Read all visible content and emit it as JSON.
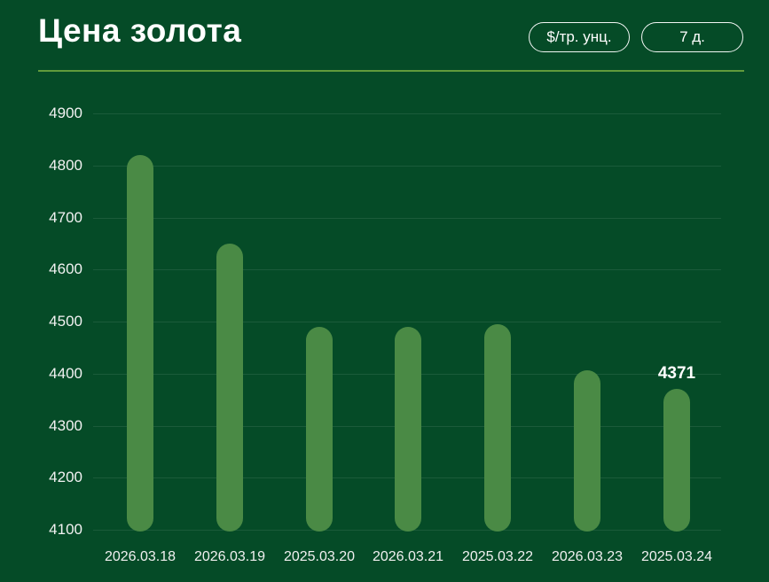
{
  "header": {
    "title": "Цена золота",
    "unit_button": "$/тр. унц.",
    "period_button": "7 д."
  },
  "colors": {
    "background": "#054B27",
    "bar": "#4A8A45",
    "divider": "#619B3C",
    "gridline": "rgba(255,255,255,0.09)",
    "text": "#FFFFFF"
  },
  "chart_data": {
    "type": "bar",
    "title": "Цена золота",
    "unit": "$/тр. унц.",
    "period": "7 д.",
    "categories": [
      "2026.03.18",
      "2026.03.19",
      "2025.03.20",
      "2026.03.21",
      "2025.03.22",
      "2026.03.23",
      "2025.03.24"
    ],
    "values": [
      4820,
      4650,
      4490,
      4490,
      4495,
      4406,
      4371
    ],
    "y_ticks": [
      4900,
      4800,
      4700,
      4600,
      4500,
      4400,
      4300,
      4200,
      4100
    ],
    "ylim": [
      4100,
      4900
    ],
    "grid": true,
    "legend": "none",
    "labeled_point": {
      "index": 6,
      "label": "4371"
    }
  }
}
